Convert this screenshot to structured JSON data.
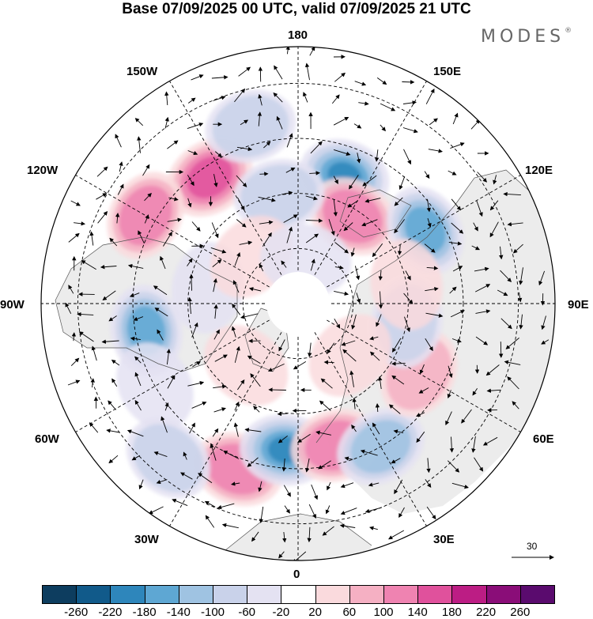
{
  "title": "Base 07/09/2025 00 UTC, valid 07/09/2025 21 UTC",
  "brand": {
    "name": "MODES",
    "mark": "®"
  },
  "longitude_labels": {
    "top": "180",
    "top_right": "150E",
    "upper_right": "120E",
    "right": "90E",
    "lower_right": "60E",
    "bottom_right": "30E",
    "bottom": "0",
    "bottom_left": "30W",
    "lower_left": "60W",
    "left": "90W",
    "upper_left": "120W",
    "top_left": "150W"
  },
  "vector_scale": {
    "label": "30"
  },
  "colorbar": {
    "tick_labels": [
      "-260",
      "-220",
      "-180",
      "-140",
      "-100",
      "-60",
      "-20",
      "20",
      "60",
      "100",
      "140",
      "180",
      "220",
      "260"
    ],
    "colors": [
      "#0d3d5f",
      "#115a8a",
      "#2e86bb",
      "#5ea7d3",
      "#9fc3e2",
      "#c9d2ea",
      "#e4e2f2",
      "#ffffff",
      "#fadadd",
      "#f5b0c3",
      "#ef83b1",
      "#e0519c",
      "#bc1d84",
      "#8a0d78",
      "#5a0b6e"
    ]
  },
  "anomaly_cells": [
    {
      "lon": 160,
      "lat": 53,
      "value": -200
    },
    {
      "lon": -145,
      "lat": 48,
      "value": 170
    },
    {
      "lon": -120,
      "lat": 42,
      "value": 120
    },
    {
      "lon": 148,
      "lat": 62,
      "value": 130
    },
    {
      "lon": 120,
      "lat": 50,
      "value": -160
    },
    {
      "lon": -80,
      "lat": 48,
      "value": -150
    },
    {
      "lon": -60,
      "lat": 45,
      "value": -60
    },
    {
      "lon": -20,
      "lat": 42,
      "value": 130
    },
    {
      "lon": -5,
      "lat": 50,
      "value": -210
    },
    {
      "lon": 15,
      "lat": 50,
      "value": 140
    },
    {
      "lon": 30,
      "lat": 45,
      "value": -110
    },
    {
      "lon": 60,
      "lat": 52,
      "value": 70
    },
    {
      "lon": 80,
      "lat": 60,
      "value": -90
    },
    {
      "lon": 100,
      "lat": 60,
      "value": 60
    },
    {
      "lon": -170,
      "lat": 60,
      "value": -70
    },
    {
      "lon": -100,
      "lat": 65,
      "value": -50
    },
    {
      "lon": -135,
      "lat": 72,
      "value": 60
    },
    {
      "lon": 45,
      "lat": 70,
      "value": 50
    },
    {
      "lon": -40,
      "lat": 68,
      "value": 60
    },
    {
      "lon": 170,
      "lat": 78,
      "value": -40
    },
    {
      "lon": -165,
      "lat": 40,
      "value": -80
    },
    {
      "lon": -40,
      "lat": 35,
      "value": -70
    }
  ],
  "land_fill": "#ececec",
  "ocean_fill": "#ffffff"
}
